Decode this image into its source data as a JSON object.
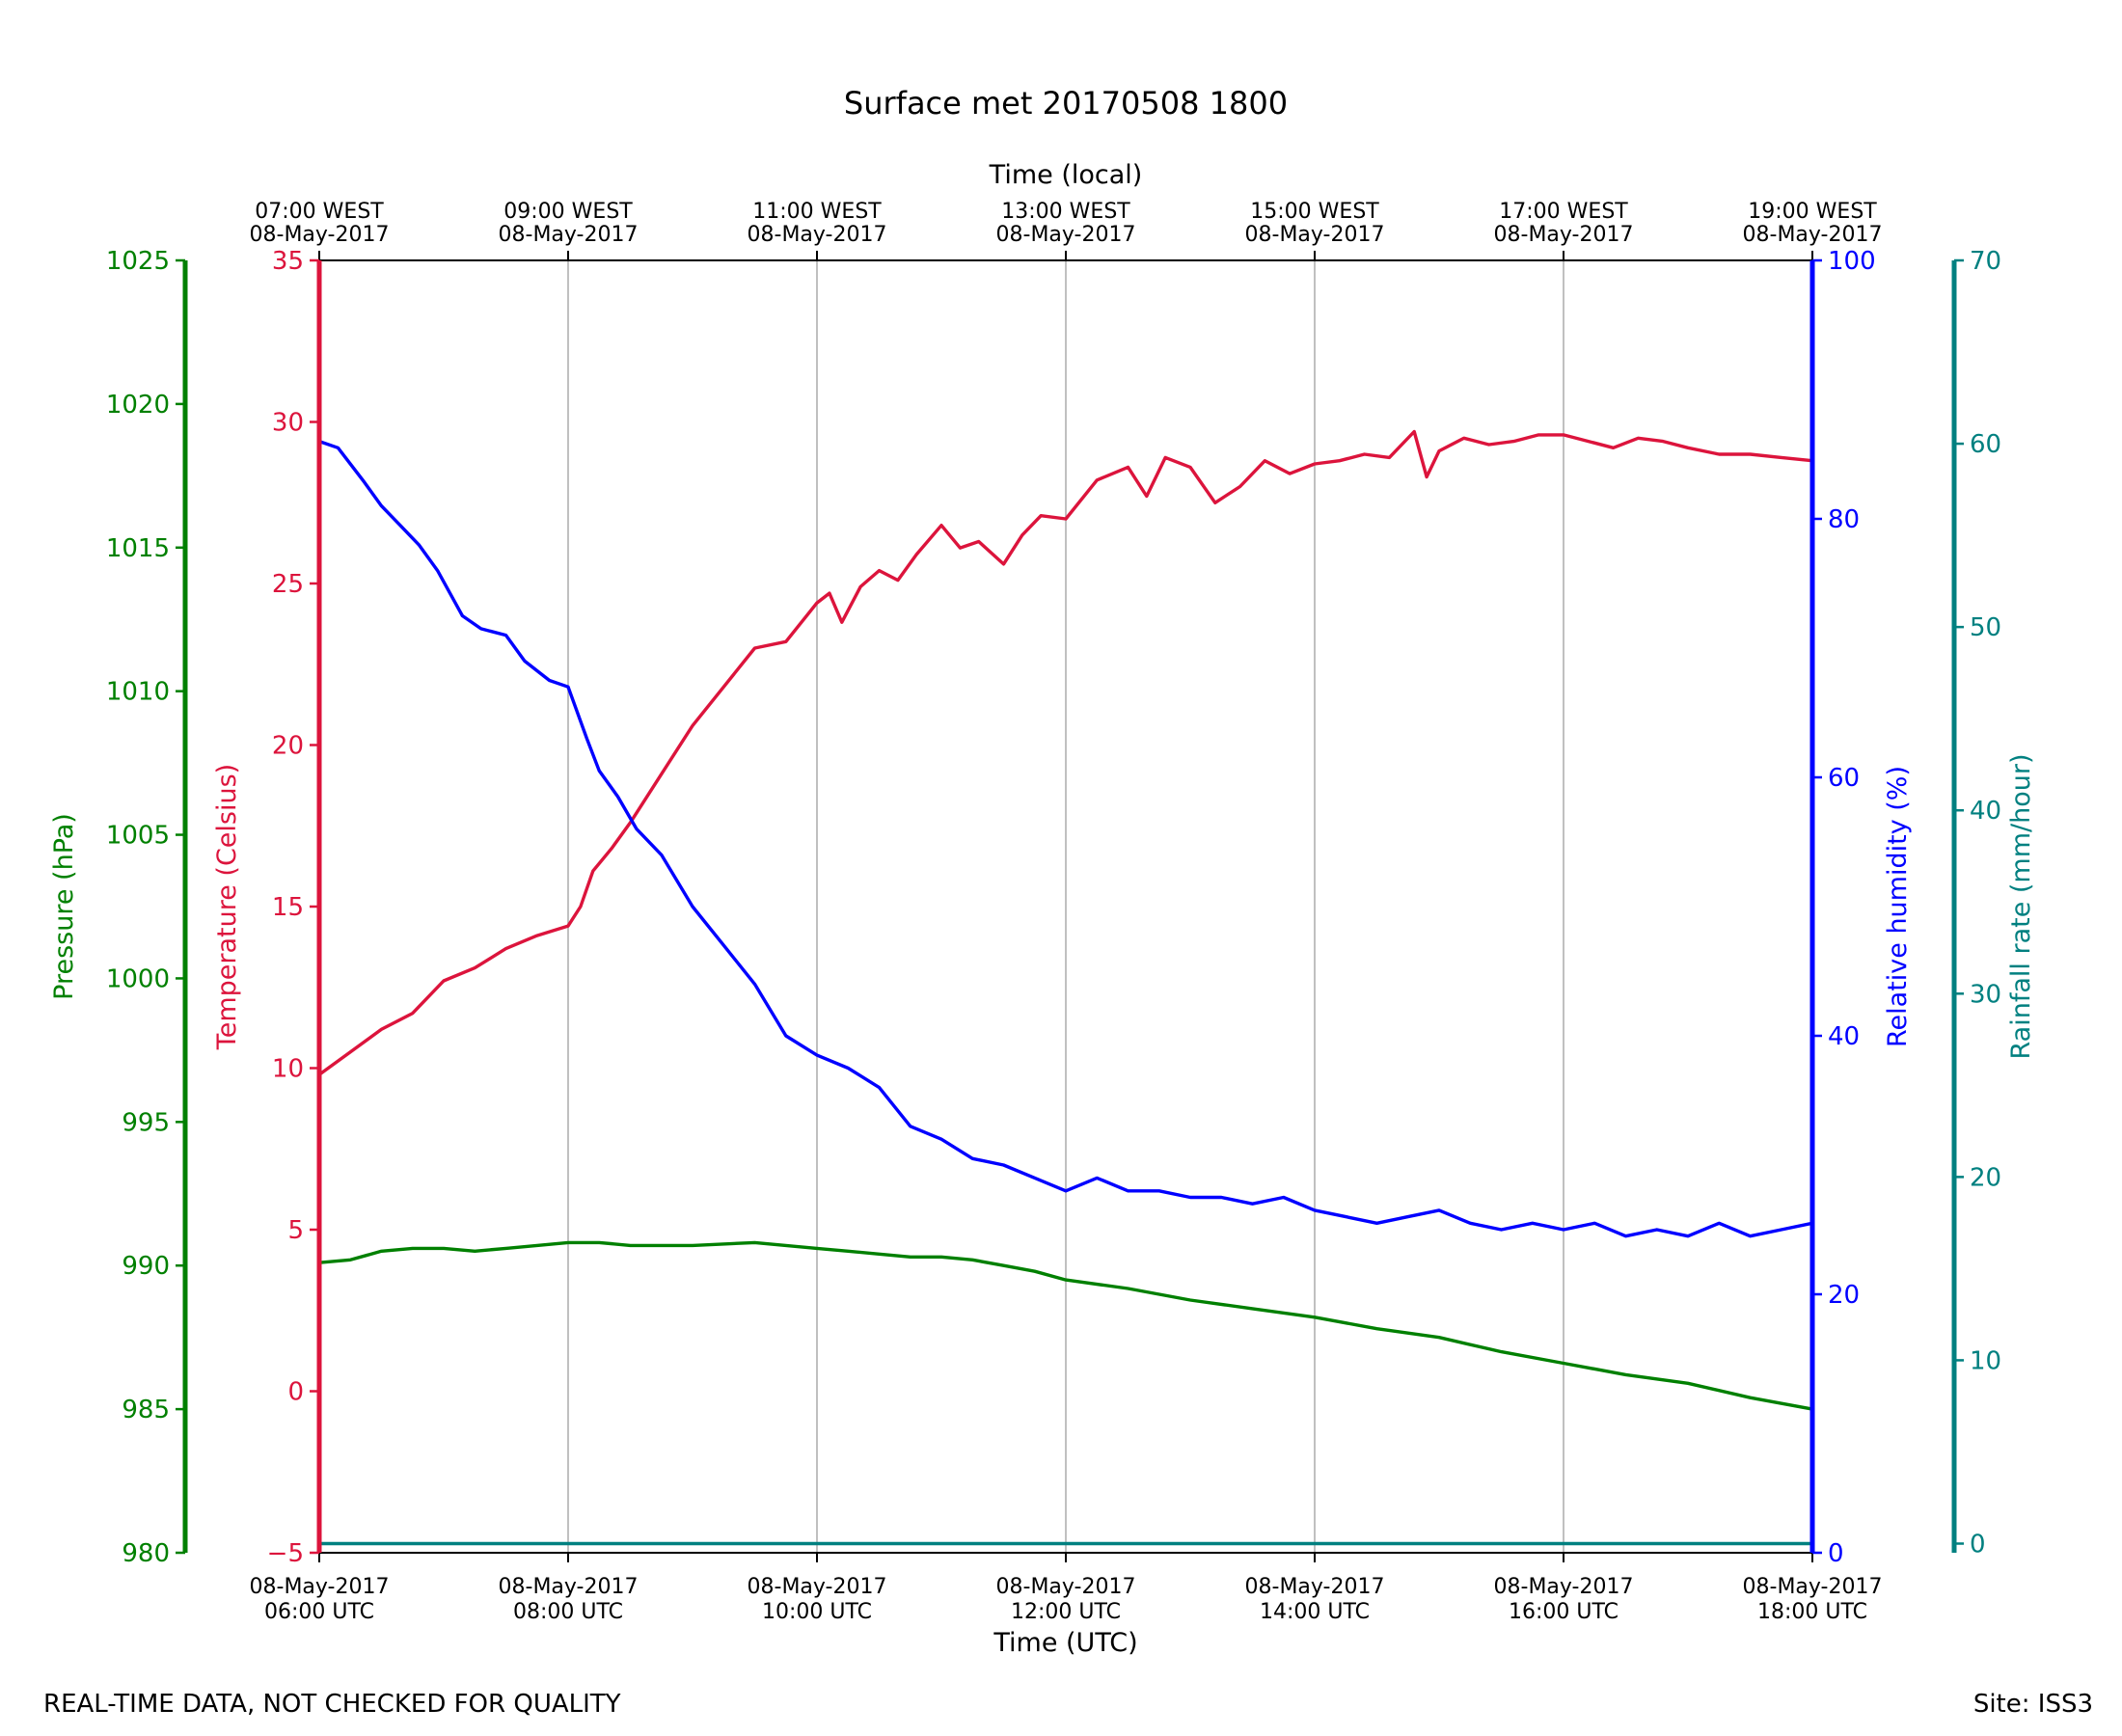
{
  "chart_data": {
    "type": "line",
    "title": "Surface met 20170508 1800",
    "footer_left": "REAL-TIME DATA, NOT CHECKED FOR QUALITY",
    "footer_right": "Site: ISS3",
    "x_axis_bottom": {
      "label": "Time (UTC)",
      "range_hours_utc": [
        "06:00",
        "18:00"
      ],
      "tick_labels": [
        [
          "08-May-2017",
          "06:00 UTC"
        ],
        [
          "08-May-2017",
          "08:00 UTC"
        ],
        [
          "08-May-2017",
          "10:00 UTC"
        ],
        [
          "08-May-2017",
          "12:00 UTC"
        ],
        [
          "08-May-2017",
          "14:00 UTC"
        ],
        [
          "08-May-2017",
          "16:00 UTC"
        ],
        [
          "08-May-2017",
          "18:00 UTC"
        ]
      ]
    },
    "x_axis_top": {
      "label": "Time (local)",
      "tick_labels": [
        [
          "07:00 WEST",
          "08-May-2017"
        ],
        [
          "09:00 WEST",
          "08-May-2017"
        ],
        [
          "11:00 WEST",
          "08-May-2017"
        ],
        [
          "13:00 WEST",
          "08-May-2017"
        ],
        [
          "15:00 WEST",
          "08-May-2017"
        ],
        [
          "17:00 WEST",
          "08-May-2017"
        ],
        [
          "19:00 WEST",
          "08-May-2017"
        ]
      ]
    },
    "grid": "vertical",
    "y_axes": [
      {
        "name": "pressure",
        "label": "Pressure (hPa)",
        "color": "#008000",
        "ylim": [
          980,
          1025
        ],
        "ticks": [
          980,
          985,
          990,
          995,
          1000,
          1005,
          1010,
          1015,
          1020,
          1025
        ]
      },
      {
        "name": "temperature",
        "label": "Temperature (Celsius)",
        "color": "#dc143c",
        "ylim": [
          -5,
          35
        ],
        "ticks": [
          "−5",
          "0",
          "5",
          "10",
          "15",
          "20",
          "25",
          "30",
          "35"
        ]
      },
      {
        "name": "humidity",
        "label": "Relative humidity (%)",
        "color": "#0000ff",
        "ylim": [
          0,
          100
        ],
        "ticks": [
          0,
          20,
          40,
          60,
          80,
          100
        ]
      },
      {
        "name": "rainfall",
        "label": "Rainfall rate (mm/hour)",
        "color": "#008080",
        "ylim": [
          -0.5,
          70
        ],
        "ticks": [
          0,
          10,
          20,
          30,
          40,
          50,
          60,
          70
        ]
      }
    ],
    "series": [
      {
        "axis": "temperature",
        "color": "#dc143c",
        "x_hours_utc": [
          6.0,
          6.25,
          6.5,
          6.75,
          7.0,
          7.25,
          7.5,
          7.75,
          8.0,
          8.1,
          8.2,
          8.35,
          8.5,
          8.75,
          9.0,
          9.25,
          9.5,
          9.75,
          10.0,
          10.1,
          10.2,
          10.35,
          10.5,
          10.65,
          10.8,
          11.0,
          11.15,
          11.3,
          11.5,
          11.65,
          11.8,
          12.0,
          12.25,
          12.5,
          12.65,
          12.8,
          13.0,
          13.2,
          13.4,
          13.6,
          13.8,
          14.0,
          14.2,
          14.4,
          14.6,
          14.8,
          14.9,
          15.0,
          15.2,
          15.4,
          15.6,
          15.8,
          16.0,
          16.2,
          16.4,
          16.6,
          16.8,
          17.0,
          17.25,
          17.5,
          17.75,
          18.0
        ],
        "values": [
          9.8,
          10.5,
          11.2,
          11.7,
          12.7,
          13.1,
          13.7,
          14.1,
          14.4,
          15.0,
          16.1,
          16.8,
          17.6,
          19.1,
          20.6,
          21.8,
          23.0,
          23.2,
          24.4,
          24.7,
          23.8,
          24.9,
          25.4,
          25.1,
          25.9,
          26.8,
          26.1,
          26.3,
          25.6,
          26.5,
          27.1,
          27.0,
          28.2,
          28.6,
          27.7,
          28.9,
          28.6,
          27.5,
          28.0,
          28.8,
          28.4,
          28.7,
          28.8,
          29.0,
          28.9,
          29.7,
          28.3,
          29.1,
          29.5,
          29.3,
          29.4,
          29.6,
          29.6,
          29.4,
          29.2,
          29.5,
          29.4,
          29.2,
          29.0,
          29.0,
          28.9,
          28.8
        ]
      },
      {
        "axis": "humidity",
        "color": "#0000ff",
        "x_hours_utc": [
          6.0,
          6.15,
          6.35,
          6.5,
          6.65,
          6.8,
          6.95,
          7.15,
          7.3,
          7.5,
          7.65,
          7.85,
          8.0,
          8.15,
          8.25,
          8.4,
          8.55,
          8.75,
          9.0,
          9.25,
          9.5,
          9.75,
          10.0,
          10.25,
          10.5,
          10.75,
          11.0,
          11.25,
          11.5,
          11.75,
          12.0,
          12.25,
          12.5,
          12.75,
          13.0,
          13.25,
          13.5,
          13.75,
          14.0,
          14.25,
          14.5,
          14.75,
          15.0,
          15.25,
          15.5,
          15.75,
          16.0,
          16.25,
          16.5,
          16.75,
          17.0,
          17.25,
          17.5,
          17.75,
          18.0
        ],
        "values": [
          86.0,
          85.5,
          83.0,
          81.0,
          79.5,
          78.0,
          76.0,
          72.5,
          71.5,
          71.0,
          69.0,
          67.5,
          67.0,
          63.0,
          60.5,
          58.5,
          56.0,
          54.0,
          50.0,
          47.0,
          44.0,
          40.0,
          38.5,
          37.5,
          36.0,
          33.0,
          32.0,
          30.5,
          30.0,
          29.0,
          28.0,
          29.0,
          28.0,
          28.0,
          27.5,
          27.5,
          27.0,
          27.5,
          26.5,
          26.0,
          25.5,
          26.0,
          26.5,
          25.5,
          25.0,
          25.5,
          25.0,
          25.5,
          24.5,
          25.0,
          24.5,
          25.5,
          24.5,
          25.0,
          25.5
        ]
      },
      {
        "axis": "pressure",
        "color": "#008000",
        "x_hours_utc": [
          6.0,
          6.25,
          6.5,
          6.75,
          7.0,
          7.25,
          7.5,
          7.75,
          8.0,
          8.25,
          8.5,
          9.0,
          9.5,
          10.0,
          10.25,
          10.5,
          10.75,
          11.0,
          11.25,
          11.5,
          11.75,
          12.0,
          12.5,
          13.0,
          13.5,
          14.0,
          14.5,
          15.0,
          15.5,
          16.0,
          16.5,
          17.0,
          17.5,
          18.0
        ],
        "values": [
          990.1,
          990.2,
          990.5,
          990.6,
          990.6,
          990.5,
          990.6,
          990.7,
          990.8,
          990.8,
          990.7,
          990.7,
          990.8,
          990.6,
          990.5,
          990.4,
          990.3,
          990.3,
          990.2,
          990.0,
          989.8,
          989.5,
          989.2,
          988.8,
          988.5,
          988.2,
          987.8,
          987.5,
          987.0,
          986.6,
          986.2,
          985.9,
          985.4,
          985.0
        ]
      },
      {
        "axis": "rainfall",
        "color": "#008080",
        "x_hours_utc": [
          6.0,
          18.0
        ],
        "values": [
          0.0,
          0.0
        ]
      }
    ]
  }
}
